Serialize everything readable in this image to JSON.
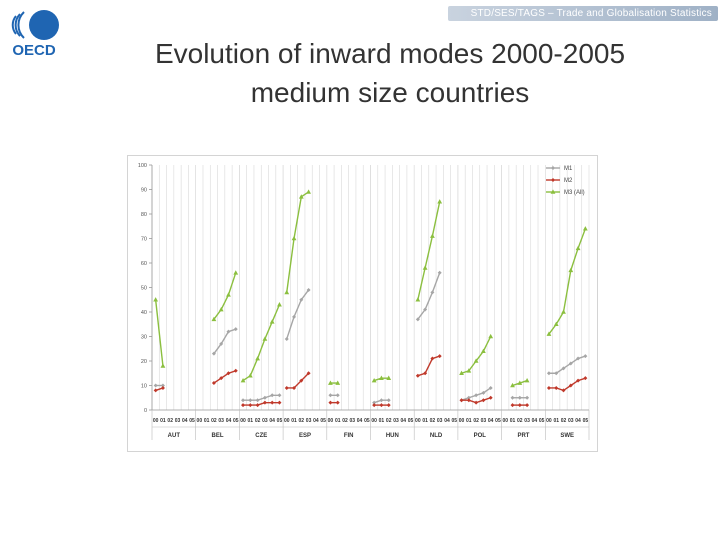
{
  "header": {
    "banner_text": "STD/SES/TAGS – Trade and Globalisation Statistics",
    "logo_text": "OECD",
    "logo_icon": "oecd-logo-icon"
  },
  "slide": {
    "title_line1": "Evolution of inward modes 2000-2005",
    "title_line2": "medium size countries"
  },
  "colors": {
    "M1": "#a6a6a6",
    "M2": "#c0392b",
    "M3": "#8bbf3f",
    "grid": "#d9d9d9",
    "banner": "#b4c2d3"
  },
  "chart_data": {
    "type": "line",
    "title": "",
    "xlabel": "",
    "ylabel": "",
    "ylim": [
      0,
      100
    ],
    "yticks": [
      0,
      10,
      20,
      30,
      40,
      50,
      60,
      70,
      80,
      90,
      100
    ],
    "grid": "vertical",
    "legend_position": "top-right",
    "year_labels": [
      "00",
      "01",
      "02",
      "03",
      "04",
      "05"
    ],
    "countries": [
      "AUT",
      "BEL",
      "CZE",
      "ESP",
      "FIN",
      "HUN",
      "NLD",
      "POL",
      "PRT",
      "SWE"
    ],
    "series": [
      {
        "name": "M1",
        "color": "#a6a6a6",
        "data": {
          "AUT": [
            10,
            10,
            null,
            null,
            null,
            null
          ],
          "BEL": [
            null,
            null,
            23,
            27,
            32,
            33
          ],
          "CZE": [
            4,
            4,
            4,
            5,
            6,
            6
          ],
          "ESP": [
            29,
            38,
            45,
            49,
            null,
            null
          ],
          "FIN": [
            6,
            6,
            null,
            null,
            null,
            null
          ],
          "HUN": [
            3,
            4,
            4,
            null,
            null,
            null
          ],
          "NLD": [
            37,
            41,
            48,
            56,
            null,
            null
          ],
          "POL": [
            4,
            5,
            6,
            7,
            9,
            null
          ],
          "PRT": [
            null,
            5,
            5,
            5,
            null,
            null
          ],
          "SWE": [
            15,
            15,
            17,
            19,
            21,
            22
          ]
        }
      },
      {
        "name": "M2",
        "color": "#c0392b",
        "data": {
          "AUT": [
            8,
            9,
            null,
            null,
            null,
            null
          ],
          "BEL": [
            null,
            null,
            11,
            13,
            15,
            16
          ],
          "CZE": [
            2,
            2,
            2,
            3,
            3,
            3
          ],
          "ESP": [
            9,
            9,
            12,
            15,
            null,
            null
          ],
          "FIN": [
            3,
            3,
            null,
            null,
            null,
            null
          ],
          "HUN": [
            2,
            2,
            2,
            null,
            null,
            null
          ],
          "NLD": [
            14,
            15,
            21,
            22,
            null,
            null
          ],
          "POL": [
            4,
            4,
            3,
            4,
            5,
            null
          ],
          "PRT": [
            null,
            2,
            2,
            2,
            null,
            null
          ],
          "SWE": [
            9,
            9,
            8,
            10,
            12,
            13
          ]
        }
      },
      {
        "name": "M3 (All)",
        "color": "#8bbf3f",
        "data": {
          "AUT": [
            45,
            18,
            null,
            null,
            null,
            null
          ],
          "BEL": [
            null,
            null,
            37,
            41,
            47,
            56
          ],
          "CZE": [
            12,
            14,
            21,
            29,
            36,
            43
          ],
          "ESP": [
            48,
            70,
            87,
            89,
            null,
            null
          ],
          "FIN": [
            11,
            11,
            null,
            null,
            null,
            null
          ],
          "HUN": [
            12,
            13,
            13,
            null,
            null,
            null
          ],
          "NLD": [
            45,
            58,
            71,
            85,
            null,
            null
          ],
          "POL": [
            15,
            16,
            20,
            24,
            30,
            null
          ],
          "PRT": [
            null,
            10,
            11,
            12,
            null,
            null
          ],
          "SWE": [
            31,
            35,
            40,
            57,
            66,
            74
          ]
        }
      }
    ]
  }
}
